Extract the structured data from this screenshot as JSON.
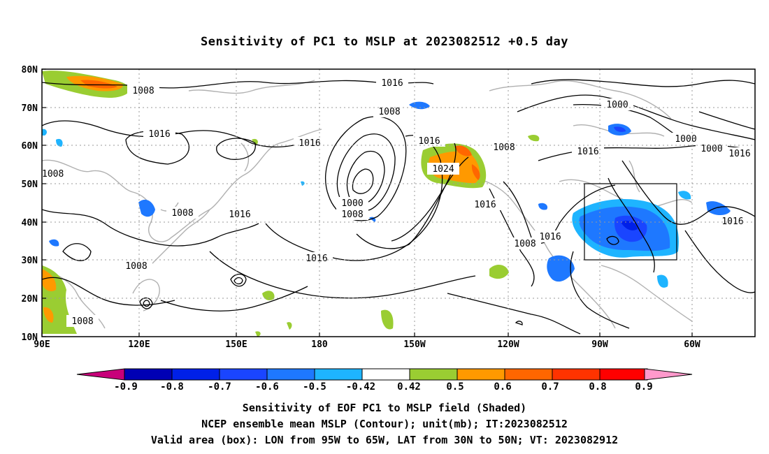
{
  "title": "Sensitivity of PC1 to MSLP at 2023082512 +0.5 day",
  "map": {
    "lon_labels": [
      "90E",
      "120E",
      "150E",
      "180",
      "150W",
      "120W",
      "90W",
      "60W"
    ],
    "lat_labels": [
      "80N",
      "70N",
      "60N",
      "50N",
      "40N",
      "30N",
      "20N",
      "10N"
    ],
    "lon_range": [
      90,
      310
    ],
    "lat_range": [
      10,
      80
    ],
    "contour_labels": [
      "1016",
      "1008",
      "1008",
      "1016",
      "1016",
      "1016",
      "1008",
      "1008",
      "1016",
      "1008",
      "1024",
      "1016",
      "1016",
      "1000",
      "1008",
      "1016",
      "1000",
      "1016",
      "1008",
      "1008",
      "1016",
      "1016",
      "1000",
      "1000",
      "1008",
      "1016"
    ],
    "valid_box": {
      "lon": [
        -95,
        -65
      ],
      "lat": [
        30,
        50
      ]
    }
  },
  "colorbar": {
    "labels": [
      "-0.9",
      "-0.8",
      "-0.7",
      "-0.6",
      "-0.5",
      "-0.42",
      "0.42",
      "0.5",
      "0.6",
      "0.7",
      "0.8",
      "0.9"
    ],
    "colors": [
      "#c8007a",
      "#0000b4",
      "#0020e8",
      "#1a45ff",
      "#1e78ff",
      "#1eb4ff",
      "#ffffff",
      "#9acd32",
      "#ff9900",
      "#ff6600",
      "#ff3300",
      "#ff0000",
      "#ff99cc"
    ]
  },
  "captions": {
    "line1": "Sensitivity of EOF PC1 to MSLP field (Shaded)",
    "line2": "NCEP ensemble mean MSLP (Contour); unit(mb); IT:2023082512",
    "line3": "Valid area (box): LON from 95W to 65W, LAT from 30N to 50N; VT: 2023082912"
  }
}
